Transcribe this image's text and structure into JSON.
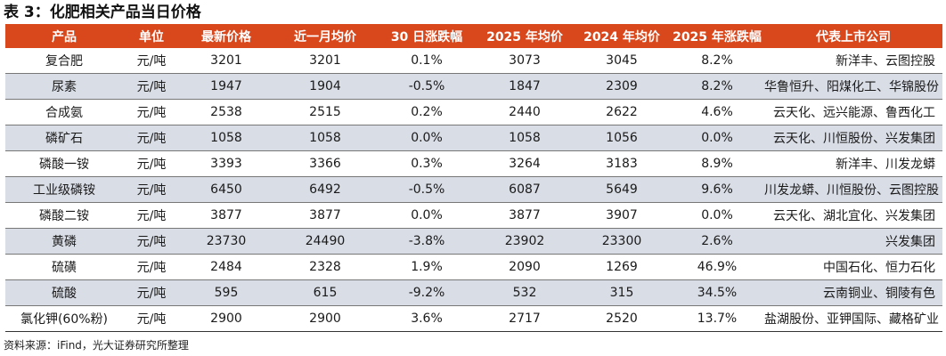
{
  "title": "表 3：化肥相关产品当日价格",
  "columns": [
    "产品",
    "单位",
    "最新价格",
    "近一月均价",
    "30 日涨跌幅",
    "2025 年均价",
    "2024 年均价",
    "2025 年涨跌幅",
    "代表上市公司"
  ],
  "rows": [
    [
      "复合肥",
      "元/吨",
      "3201",
      "3201",
      "0.1%",
      "3073",
      "3045",
      "8.2%",
      "新洋丰、云图控股"
    ],
    [
      "尿素",
      "元/吨",
      "1947",
      "1904",
      "-0.5%",
      "1847",
      "2309",
      "8.2%",
      "华鲁恒升、阳煤化工、华锦股份"
    ],
    [
      "合成氨",
      "元/吨",
      "2538",
      "2515",
      "0.2%",
      "2440",
      "2622",
      "4.6%",
      "云天化、远兴能源、鲁西化工"
    ],
    [
      "磷矿石",
      "元/吨",
      "1058",
      "1058",
      "0.0%",
      "1058",
      "1056",
      "0.0%",
      "云天化、川恒股份、兴发集团"
    ],
    [
      "磷酸一铵",
      "元/吨",
      "3393",
      "3366",
      "0.3%",
      "3264",
      "3183",
      "8.9%",
      "新洋丰、川发龙蟒"
    ],
    [
      "工业级磷铵",
      "元/吨",
      "6450",
      "6492",
      "-0.5%",
      "6087",
      "5649",
      "9.6%",
      "川发龙蟒、川恒股份、云图控股"
    ],
    [
      "磷酸二铵",
      "元/吨",
      "3877",
      "3877",
      "0.0%",
      "3877",
      "3907",
      "0.0%",
      "云天化、湖北宜化、兴发集团"
    ],
    [
      "黄磷",
      "元/吨",
      "23730",
      "24490",
      "-3.8%",
      "23902",
      "23300",
      "2.6%",
      "兴发集团"
    ],
    [
      "硫磺",
      "元/吨",
      "2484",
      "2328",
      "1.9%",
      "2090",
      "1269",
      "46.9%",
      "中国石化、恒力石化"
    ],
    [
      "硫酸",
      "元/吨",
      "595",
      "615",
      "-9.2%",
      "532",
      "315",
      "34.5%",
      "云南铜业、铜陵有色"
    ],
    [
      "氯化钾(60%粉)",
      "元/吨",
      "2900",
      "2900",
      "3.6%",
      "2717",
      "2520",
      "13.7%",
      "盐湖股份、亚钾国际、藏格矿业"
    ]
  ],
  "source": "资料来源：iFind，光大证券研究所整理",
  "colors": {
    "header_bg": "#d9481c",
    "stripe_bg": "#d9dde6"
  }
}
